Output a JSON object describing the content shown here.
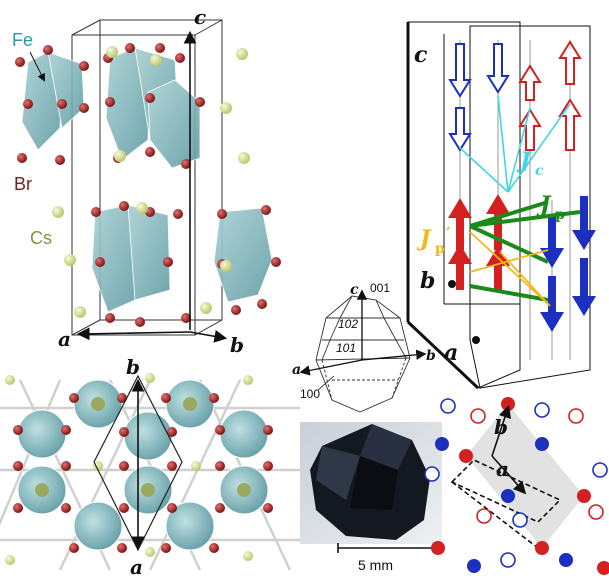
{
  "panel_structure": {
    "elements": {
      "fe": "Fe",
      "br": "Br",
      "cs": "Cs"
    },
    "axes": {
      "a": "a",
      "b": "b",
      "c": "c"
    }
  },
  "panel_basal": {
    "axes": {
      "a": "a",
      "b": "b"
    }
  },
  "panel_crystal": {
    "axes": {
      "a": "a",
      "b": "b",
      "c": "c"
    },
    "faces": {
      "f001": "001",
      "f102": "102",
      "f101": "101",
      "f100": "100"
    },
    "scale_label": "5 mm"
  },
  "panel_magnetic": {
    "axes": {
      "a": "a",
      "b": "b",
      "c": "c"
    },
    "couplings": {
      "jc": "J",
      "jc_sub": "c",
      "jp": "J",
      "jp_sub": "p",
      "jpp": "J",
      "jpp_sub": "p",
      "jpp_prime": "′"
    }
  },
  "panel_lattice": {
    "axes": {
      "a": "a",
      "b": "b"
    }
  },
  "colors": {
    "fe_octahedron": "#7fb3b8",
    "br_atom": "#9b1b1b",
    "cs_atom": "#d8e08e",
    "spin_red": "#d42020",
    "spin_blue": "#1c2fbf",
    "jc": "#3fd6e6",
    "jp": "#1a8a1a",
    "jpp": "#f0b81a",
    "fe_label": "#2a9aa8",
    "br_label": "#7a1f1f",
    "cs_label": "#7a9a3a"
  }
}
